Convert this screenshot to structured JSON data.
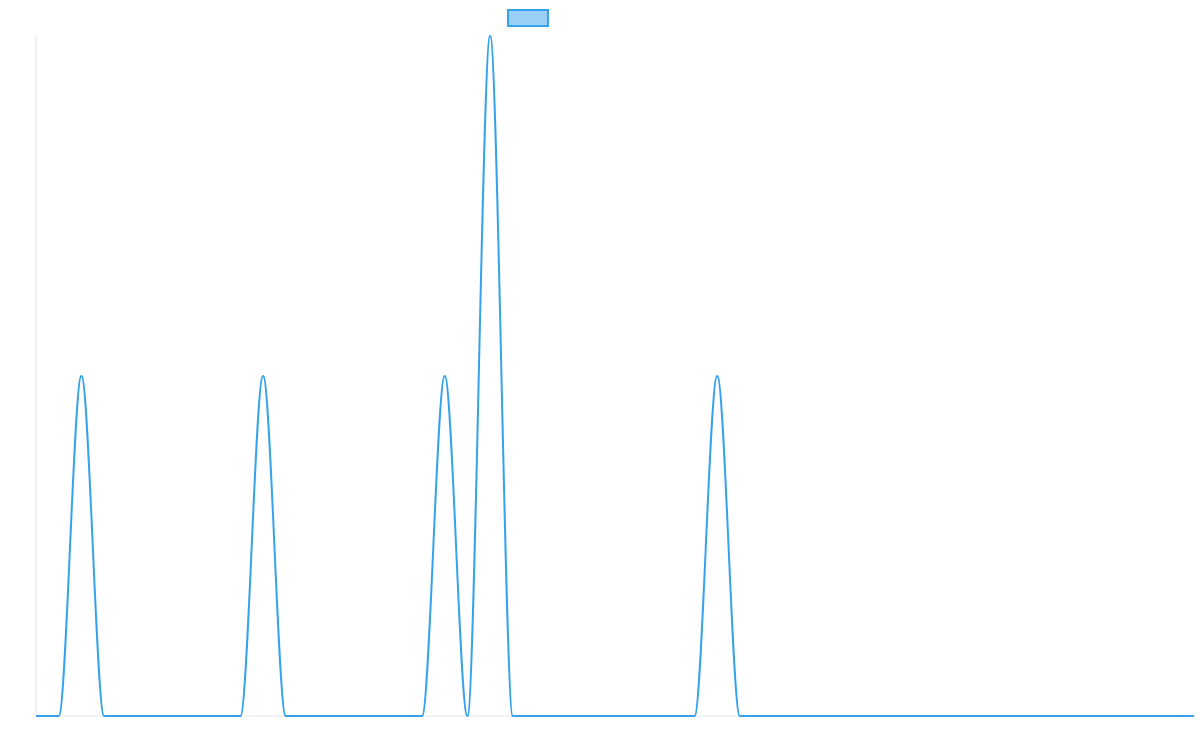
{
  "chart_data": {
    "type": "line",
    "title": "",
    "xlabel": "",
    "ylabel": "",
    "grid": false,
    "legend": {
      "placement": "top-center",
      "entries": [
        {
          "label": "",
          "fill": "#9ad0f5",
          "stroke": "#36a2eb"
        }
      ]
    },
    "xlim": [
      0,
      51
    ],
    "ylim": [
      0,
      2
    ],
    "series": [
      {
        "color": "#36a2eb",
        "x": [
          0,
          1,
          2,
          3,
          4,
          5,
          6,
          7,
          8,
          9,
          10,
          11,
          12,
          13,
          14,
          15,
          16,
          17,
          18,
          19,
          20,
          21,
          22,
          23,
          24,
          25,
          26,
          27,
          28,
          29,
          30,
          31,
          32,
          33,
          34,
          35,
          36,
          37,
          38,
          39,
          40,
          41,
          42,
          43,
          44,
          45,
          46,
          47,
          48,
          49,
          50,
          51
        ],
        "values": [
          0,
          0,
          1,
          0,
          0,
          0,
          0,
          0,
          0,
          0,
          1,
          0,
          0,
          0,
          0,
          0,
          0,
          0,
          1,
          0,
          2,
          0,
          0,
          0,
          0,
          0,
          0,
          0,
          0,
          0,
          1,
          0,
          0,
          0,
          0,
          0,
          0,
          0,
          0,
          0,
          0,
          0,
          0,
          0,
          0,
          0,
          0,
          0,
          0,
          0,
          0,
          0
        ]
      }
    ]
  }
}
